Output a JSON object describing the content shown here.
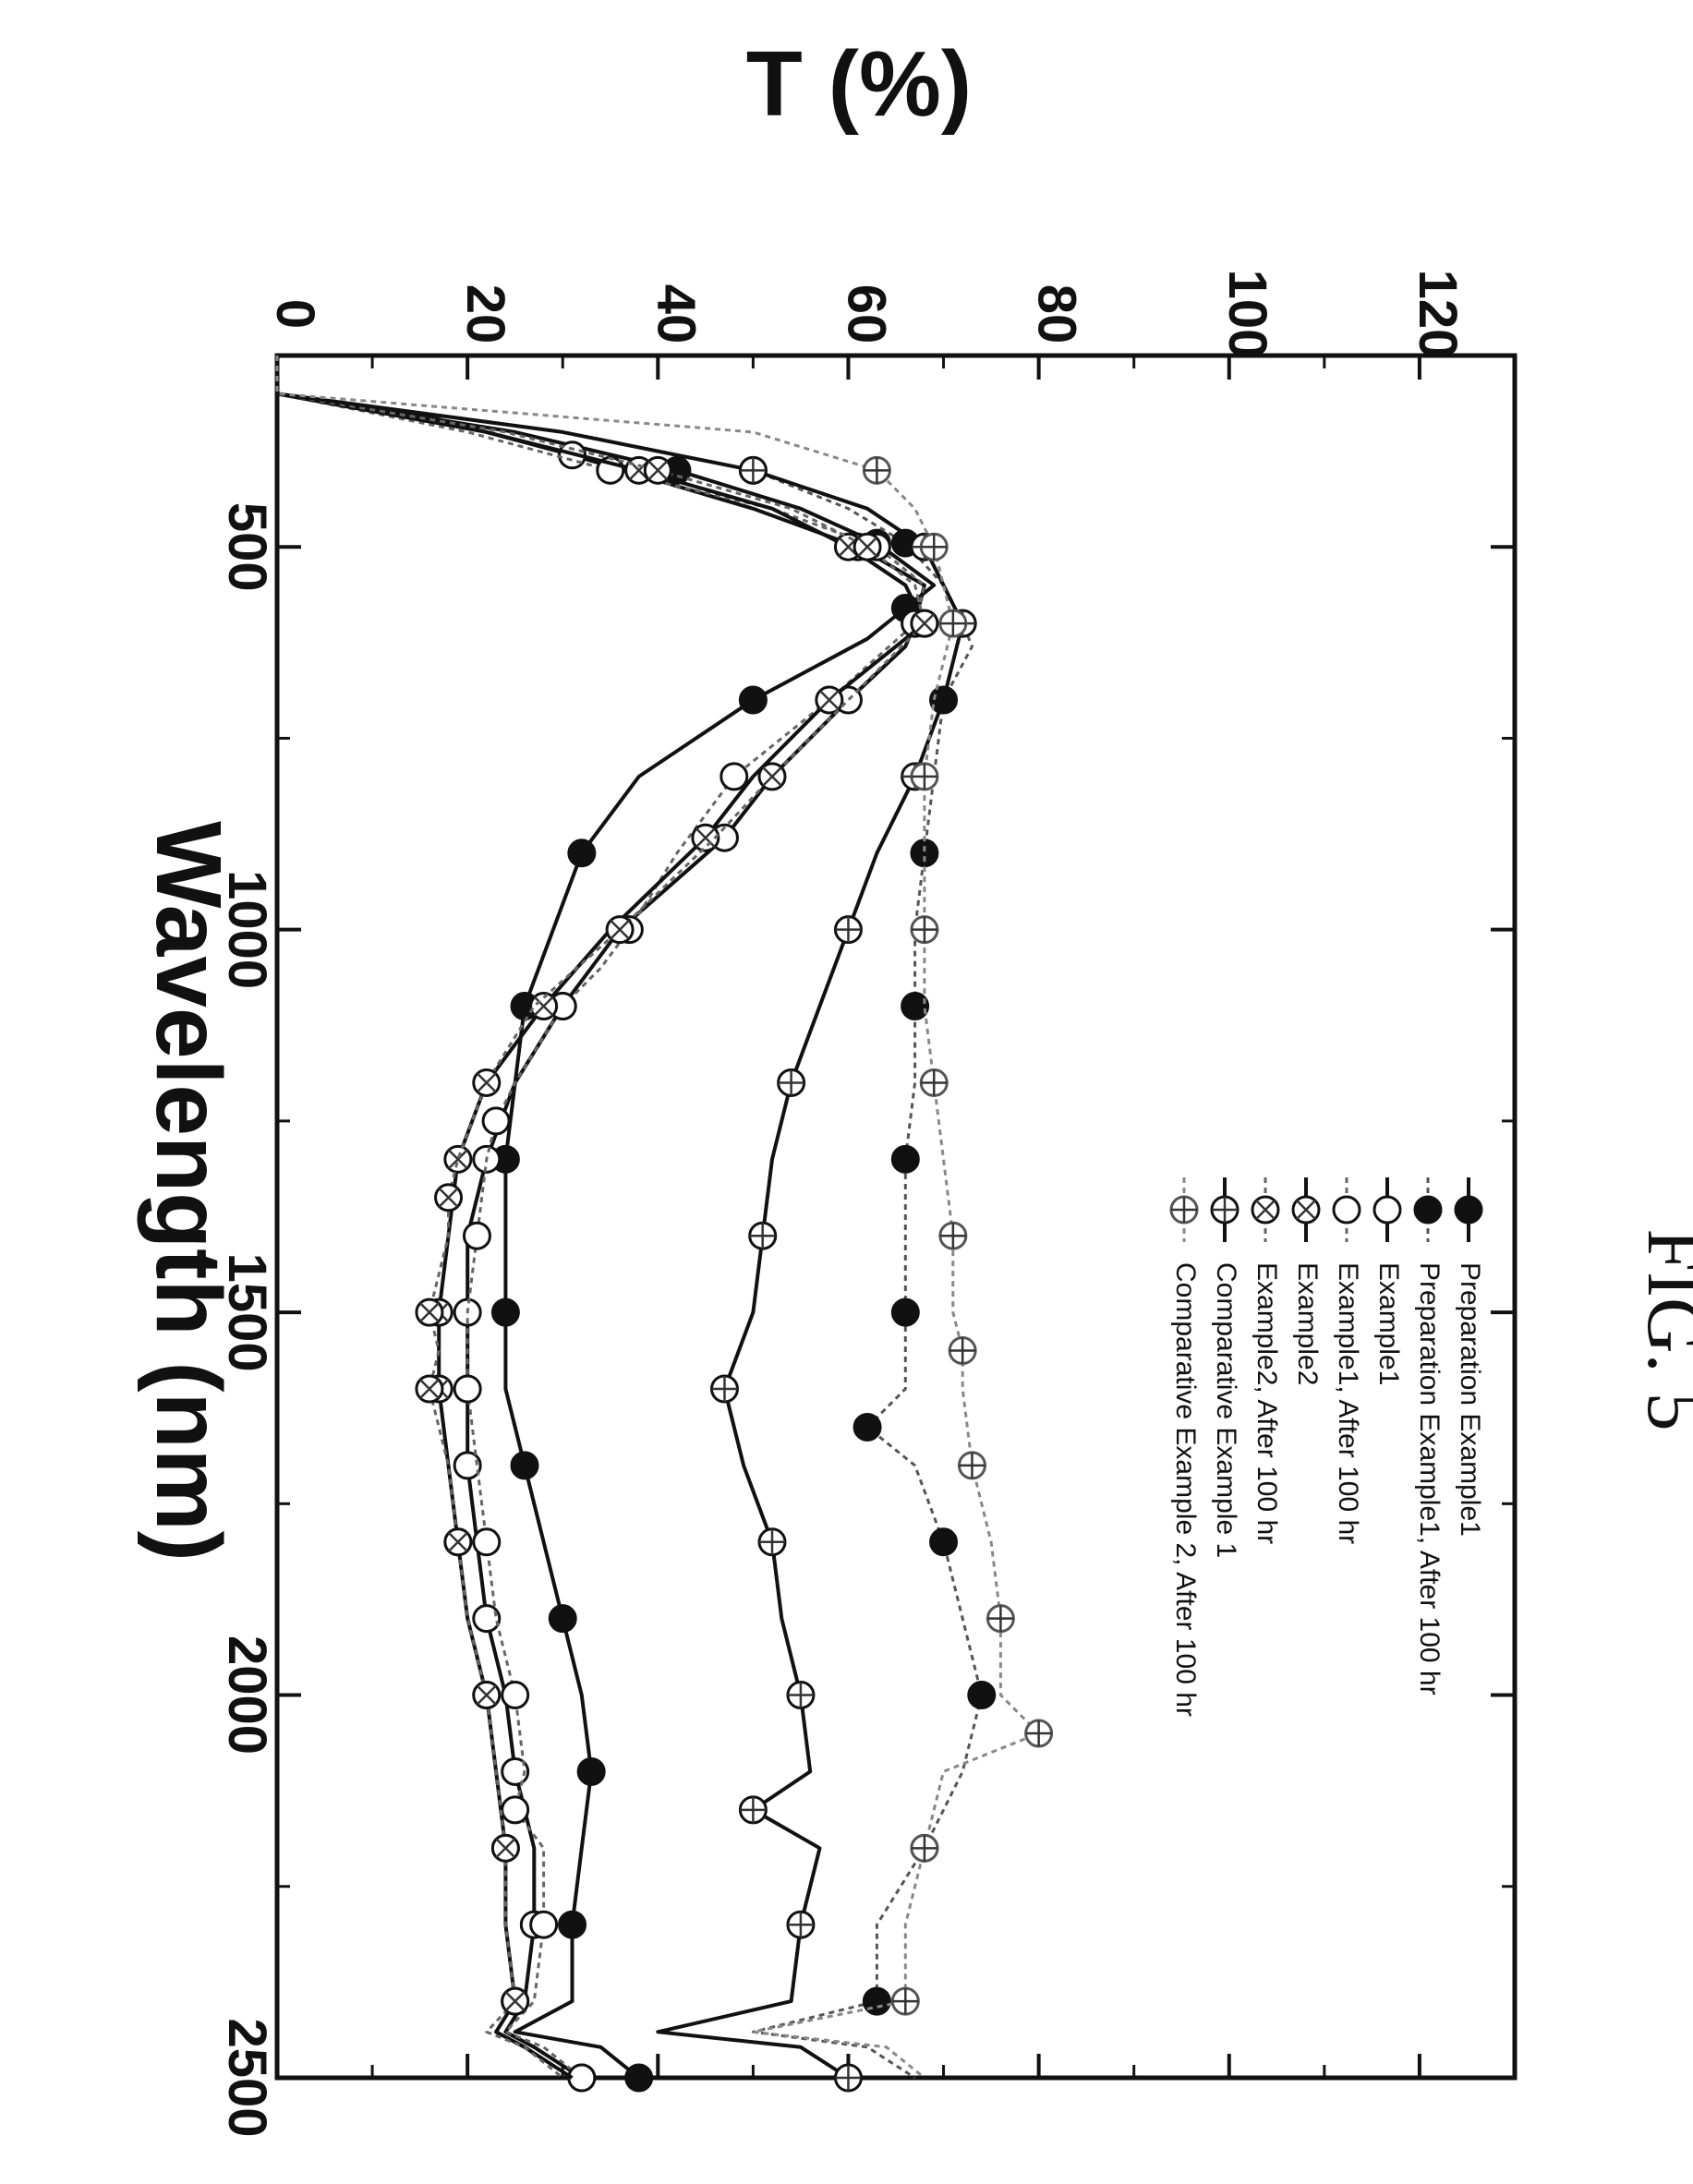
{
  "figure": {
    "title": "FIG. 5"
  },
  "chart_data": {
    "type": "line",
    "xlabel": "Wavelength (nm)",
    "ylabel": "T (%)",
    "xlim": [
      250,
      2500
    ],
    "ylim": [
      0,
      130
    ],
    "xticks": [
      500,
      1000,
      1500,
      2000,
      2500
    ],
    "yticks": [
      0,
      20,
      40,
      60,
      80,
      100,
      120
    ],
    "orientation": "rotated 90 degrees clockwise (wavelength axis runs top to bottom)",
    "grid": false,
    "legend_position": "bottom-left of plot area",
    "series": [
      {
        "name": "Preparation Example1",
        "line": "solid",
        "color": "#111111",
        "marker": "filled-circle",
        "x": [
          250,
          290,
          300,
          350,
          400,
          450,
          495,
          550,
          580,
          620,
          700,
          800,
          900,
          1000,
          1100,
          1200,
          1300,
          1400,
          1500,
          1600,
          1700,
          1800,
          1900,
          2000,
          2100,
          2200,
          2300,
          2400,
          2440,
          2460,
          2500
        ],
        "y": [
          0,
          0,
          0,
          25,
          42,
          55,
          63,
          69,
          66,
          62,
          50,
          38,
          32,
          29,
          26,
          25,
          24,
          24,
          24,
          24,
          26,
          28,
          30,
          32,
          33,
          32,
          31,
          31,
          25,
          34,
          38
        ]
      },
      {
        "name": "Preparation Example1, After 100 hr",
        "line": "dashed",
        "color": "#555555",
        "marker": "filled-circle",
        "x": [
          250,
          290,
          300,
          350,
          400,
          450,
          495,
          550,
          600,
          630,
          700,
          800,
          900,
          1000,
          1100,
          1200,
          1300,
          1400,
          1500,
          1600,
          1650,
          1700,
          1800,
          1900,
          2000,
          2100,
          2200,
          2300,
          2400,
          2440,
          2460,
          2500
        ],
        "y": [
          0,
          0,
          0,
          30,
          50,
          60,
          66,
          70,
          72,
          73,
          70,
          69,
          68,
          67,
          67,
          67,
          66,
          66,
          66,
          66,
          62,
          67,
          70,
          72,
          74,
          72,
          68,
          63,
          63,
          50,
          62,
          67
        ]
      },
      {
        "name": "Example1",
        "line": "solid",
        "color": "#111111",
        "marker": "open-circle",
        "x": [
          250,
          290,
          300,
          330,
          380,
          450,
          500,
          550,
          600,
          630,
          700,
          800,
          880,
          1000,
          1100,
          1200,
          1300,
          1400,
          1500,
          1600,
          1700,
          1800,
          1900,
          2000,
          2100,
          2200,
          2300,
          2400,
          2440,
          2460,
          2500
        ],
        "y": [
          0,
          0,
          0,
          16,
          31,
          50,
          61,
          68,
          67,
          66,
          60,
          52,
          47,
          36,
          30,
          25,
          22,
          20,
          20,
          20,
          20,
          21,
          22,
          24,
          25,
          27,
          27,
          26,
          24,
          27,
          32
        ]
      },
      {
        "name": "Example1, After 100 hr",
        "line": "dashed",
        "color": "#666666",
        "marker": "open-circle",
        "x": [
          250,
          290,
          300,
          350,
          400,
          450,
          500,
          550,
          600,
          700,
          800,
          900,
          1000,
          1050,
          1100,
          1200,
          1250,
          1300,
          1400,
          1500,
          1600,
          1700,
          1800,
          1900,
          2000,
          2100,
          2150,
          2200,
          2300,
          2400,
          2440,
          2460,
          2500
        ],
        "y": [
          0,
          0,
          0,
          20,
          35,
          52,
          63,
          68,
          67,
          58,
          48,
          42,
          37,
          34,
          30,
          25,
          23,
          22,
          21,
          20,
          20,
          21,
          22,
          23,
          25,
          26,
          25,
          28,
          28,
          27,
          24,
          28,
          32
        ]
      },
      {
        "name": "Example2",
        "line": "solid",
        "color": "#111111",
        "marker": "crossed-circle",
        "x": [
          250,
          290,
          300,
          350,
          400,
          450,
          500,
          550,
          600,
          620,
          700,
          800,
          880,
          1000,
          1100,
          1200,
          1300,
          1400,
          1500,
          1550,
          1600,
          1700,
          1800,
          1900,
          2000,
          2100,
          2200,
          2300,
          2400,
          2440,
          2460,
          2500
        ],
        "y": [
          0,
          0,
          0,
          22,
          38,
          52,
          60,
          66,
          68,
          66,
          58,
          50,
          45,
          35,
          28,
          22,
          19,
          18,
          17,
          17,
          17,
          18,
          19,
          20,
          22,
          23,
          24,
          24,
          25,
          23,
          26,
          31
        ]
      },
      {
        "name": "Example2, After 100 hr",
        "line": "dashed",
        "color": "#666666",
        "marker": "crossed-circle",
        "x": [
          250,
          290,
          300,
          350,
          400,
          450,
          500,
          550,
          600,
          700,
          800,
          880,
          1000,
          1100,
          1200,
          1300,
          1350,
          1400,
          1500,
          1550,
          1600,
          1700,
          1800,
          1900,
          2000,
          2100,
          2200,
          2300,
          2400,
          2440,
          2460,
          2500
        ],
        "y": [
          0,
          0,
          0,
          24,
          40,
          54,
          62,
          67,
          68,
          60,
          52,
          46,
          36,
          27,
          22,
          19,
          18,
          18,
          16,
          17,
          16,
          18,
          19,
          20,
          22,
          23,
          24,
          24,
          25,
          22,
          26,
          30
        ]
      },
      {
        "name": "Comparative Example 1",
        "line": "solid",
        "color": "#111111",
        "marker": "plus-circle",
        "x": [
          250,
          290,
          300,
          350,
          400,
          450,
          500,
          550,
          600,
          700,
          800,
          900,
          1000,
          1100,
          1200,
          1300,
          1400,
          1500,
          1600,
          1700,
          1800,
          1900,
          2000,
          2100,
          2150,
          2200,
          2300,
          2400,
          2440,
          2460,
          2500
        ],
        "y": [
          0,
          0,
          0,
          30,
          50,
          62,
          68,
          70,
          72,
          70,
          67,
          63,
          60,
          57,
          54,
          52,
          51,
          50,
          47,
          49,
          52,
          53,
          55,
          56,
          50,
          57,
          55,
          54,
          40,
          55,
          60
        ]
      },
      {
        "name": "Comparative Example 2, After 100 hr",
        "line": "dashed",
        "color": "#888888",
        "marker": "plus-circle",
        "x": [
          250,
          290,
          300,
          350,
          400,
          450,
          500,
          550,
          600,
          700,
          800,
          900,
          1000,
          1100,
          1200,
          1300,
          1400,
          1500,
          1550,
          1600,
          1700,
          1800,
          1900,
          2000,
          2050,
          2100,
          2200,
          2300,
          2400,
          2440,
          2460,
          2500
        ],
        "y": [
          0,
          0,
          0,
          50,
          63,
          67,
          69,
          70,
          71,
          69,
          68,
          68,
          68,
          68,
          69,
          70,
          71,
          71,
          72,
          72,
          73,
          75,
          76,
          76,
          80,
          70,
          68,
          66,
          66,
          50,
          64,
          68
        ]
      }
    ]
  },
  "legend": {
    "entries": [
      {
        "label": "Preparation Example1",
        "series": 0
      },
      {
        "label": "Preparation Example1, After 100 hr",
        "series": 1
      },
      {
        "label": "Example1",
        "series": 2
      },
      {
        "label": "Example1, After 100 hr",
        "series": 3
      },
      {
        "label": "Example2",
        "series": 4
      },
      {
        "label": "Example2, After 100 hr",
        "series": 5
      },
      {
        "label": "Comparative Example 1",
        "series": 6
      },
      {
        "label": "Comparative Example 2, After 100 hr",
        "series": 7
      }
    ]
  }
}
